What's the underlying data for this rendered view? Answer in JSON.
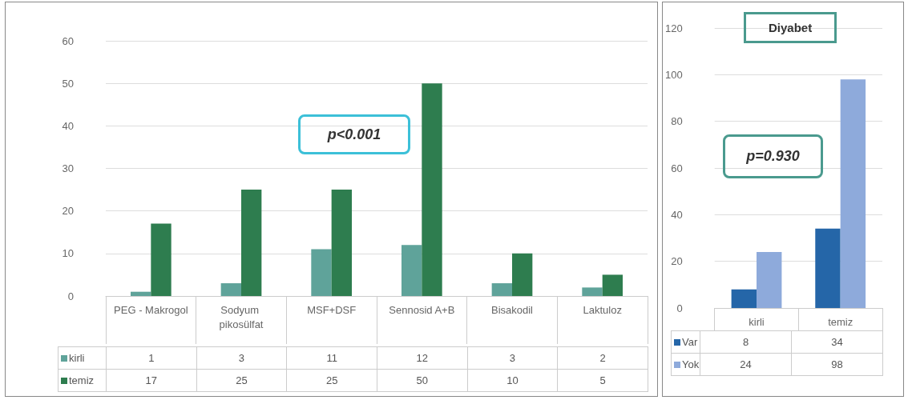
{
  "chart_data": [
    {
      "type": "bar",
      "categories": [
        "PEG - Makrogol",
        "Sodyum pikosülfat",
        "MSF+DSF",
        "Sennosid A+B",
        "Bisakodil",
        "Laktuloz"
      ],
      "series": [
        {
          "name": "kirli",
          "color": "#5fa39a",
          "values": [
            1,
            3,
            11,
            12,
            3,
            2
          ]
        },
        {
          "name": "temiz",
          "color": "#2e7d4f",
          "values": [
            17,
            25,
            25,
            50,
            10,
            5
          ]
        }
      ],
      "ylim": [
        0,
        60
      ],
      "yticks": [
        0,
        10,
        20,
        30,
        40,
        50,
        60
      ],
      "grid": "y",
      "legend": "bottom",
      "data_labels": true,
      "annotations": [
        "p<0.001"
      ]
    },
    {
      "type": "bar",
      "title": "Diyabet",
      "categories": [
        "kirli",
        "temiz"
      ],
      "series": [
        {
          "name": "Var",
          "color": "#2566a8",
          "values": [
            8,
            34
          ]
        },
        {
          "name": "Yok",
          "color": "#8eaadb",
          "values": [
            24,
            98
          ]
        }
      ],
      "ylim": [
        0,
        120
      ],
      "yticks": [
        0,
        20,
        40,
        60,
        80,
        100,
        120
      ],
      "grid": "y",
      "legend": "bottom",
      "data_labels": true,
      "annotations": [
        "p=0.930"
      ]
    }
  ]
}
